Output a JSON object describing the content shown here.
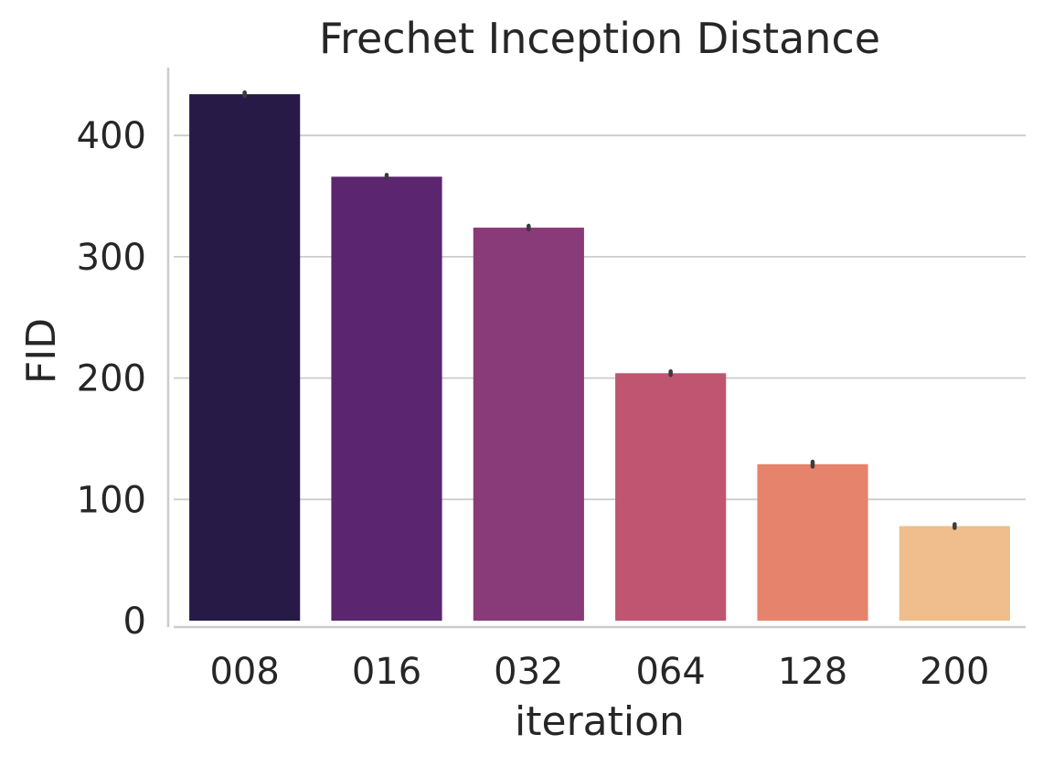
{
  "chart_data": {
    "type": "bar",
    "title": "Frechet Inception Distance",
    "xlabel": "iteration",
    "ylabel": "FID",
    "categories": [
      "008",
      "016",
      "032",
      "064",
      "128",
      "200"
    ],
    "values": [
      434,
      366,
      324,
      204,
      129,
      78
    ],
    "error_half_width": [
      1.5,
      1.5,
      1.5,
      1.5,
      2,
      1.5
    ],
    "ylim": [
      0,
      450
    ],
    "yticks": [
      0,
      100,
      200,
      300,
      400
    ],
    "grid": "horizontal",
    "colors": [
      "#271a47",
      "#5c256f",
      "#893a78",
      "#c05571",
      "#e5836c",
      "#f0bd8c"
    ],
    "error_color": "#3c3c3c",
    "grid_color": "#cccccc",
    "spine_color": "#cccccc"
  }
}
